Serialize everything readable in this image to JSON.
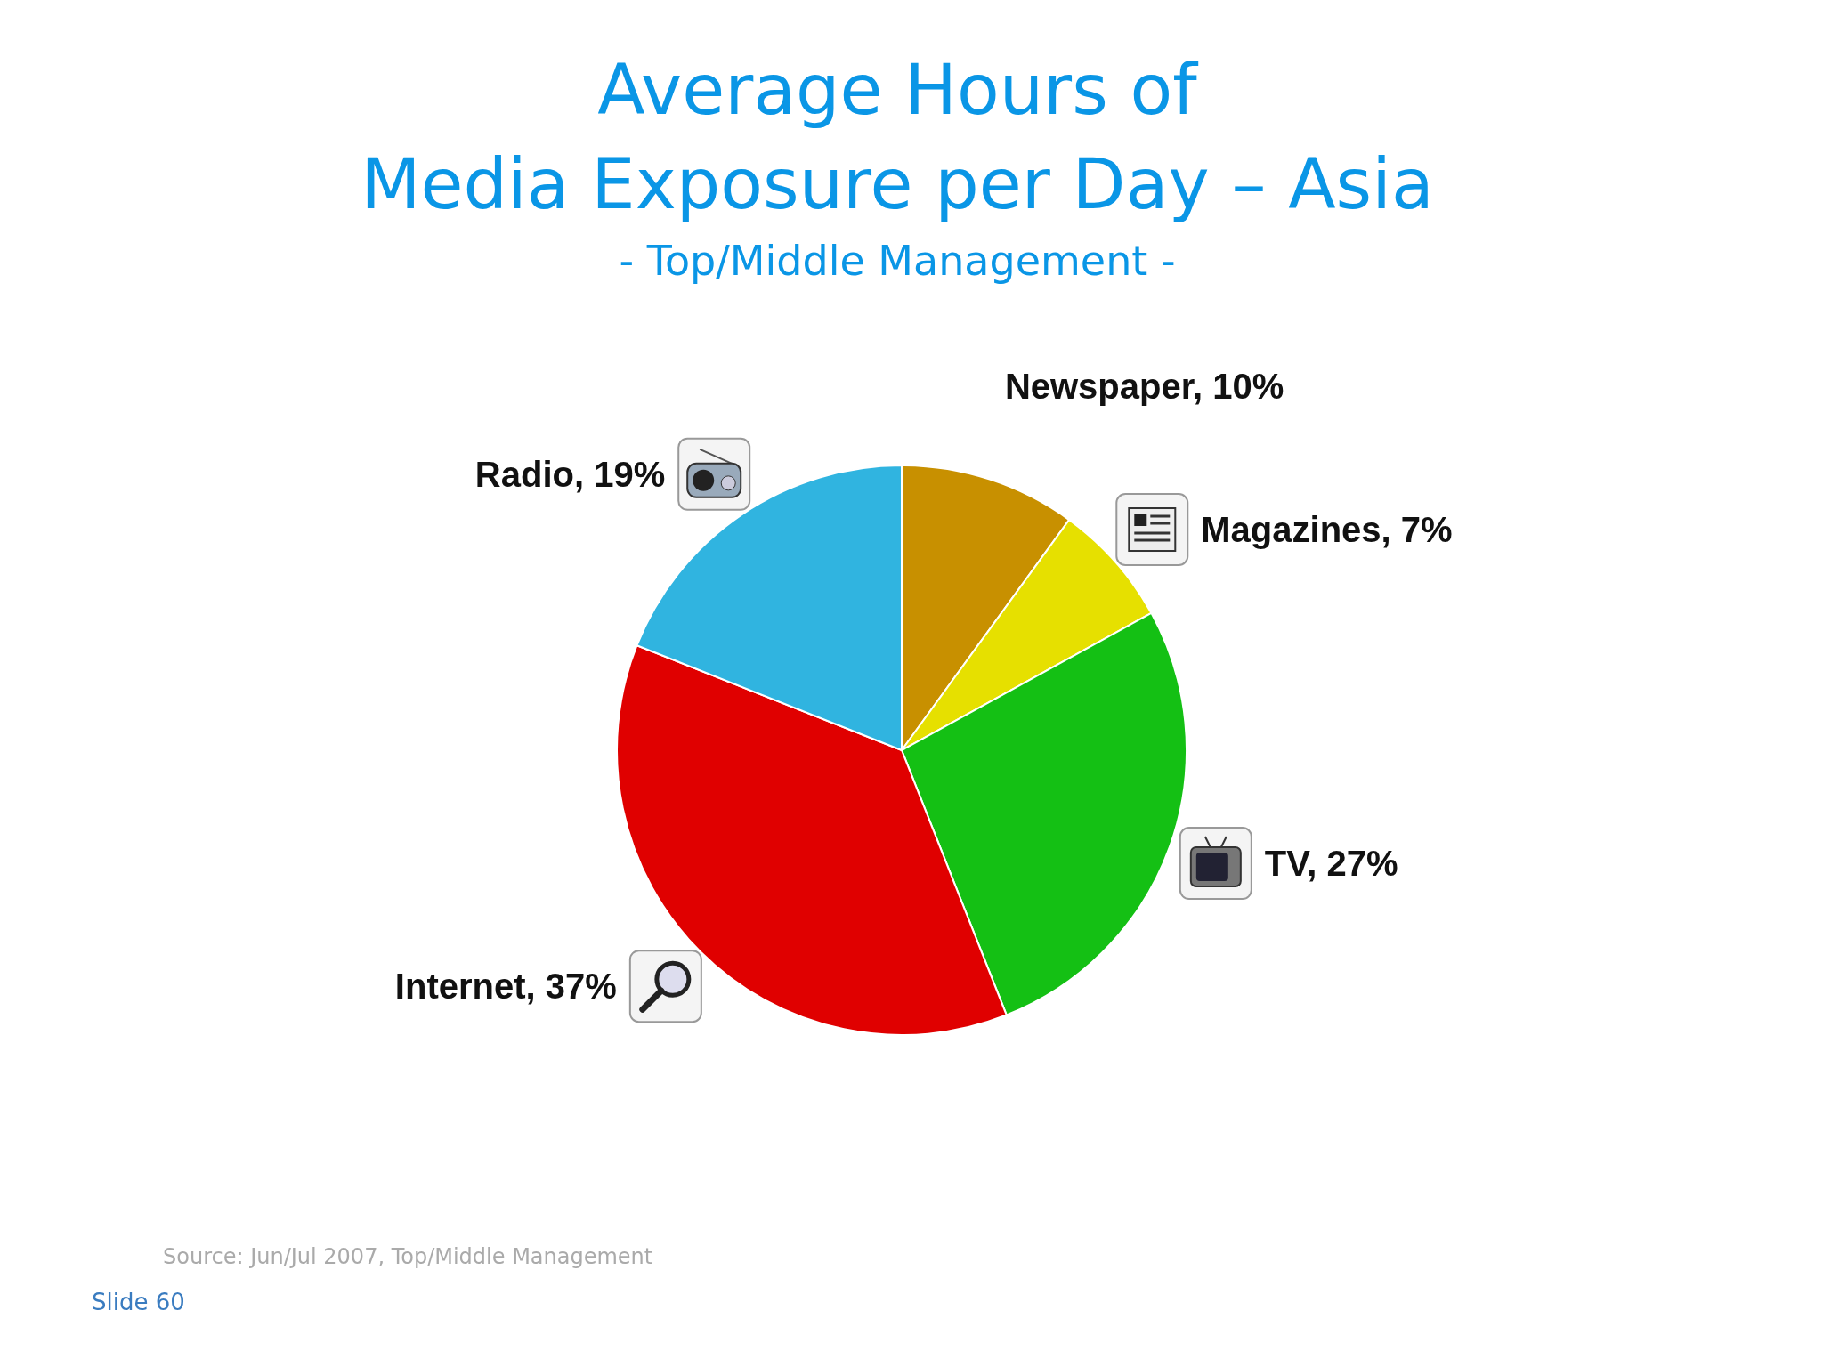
{
  "chart_data": {
    "type": "pie",
    "title": "Average Hours of\nMedia Exposure per Day – Asia",
    "subtitle": "- Top/Middle Management -",
    "categories": [
      "Newspaper",
      "Magazines",
      "TV",
      "Internet",
      "Radio"
    ],
    "values": [
      10,
      7,
      27,
      37,
      19
    ],
    "colors": [
      "#c89000",
      "#e6e000",
      "#14c014",
      "#e00000",
      "#30b4e0"
    ],
    "value_labels": [
      "10%",
      "7%",
      "27%",
      "37%",
      "19%"
    ],
    "annotations": [
      "Source: Jun/Jul 2007, Top/Middle Management",
      "Slide 60"
    ]
  }
}
